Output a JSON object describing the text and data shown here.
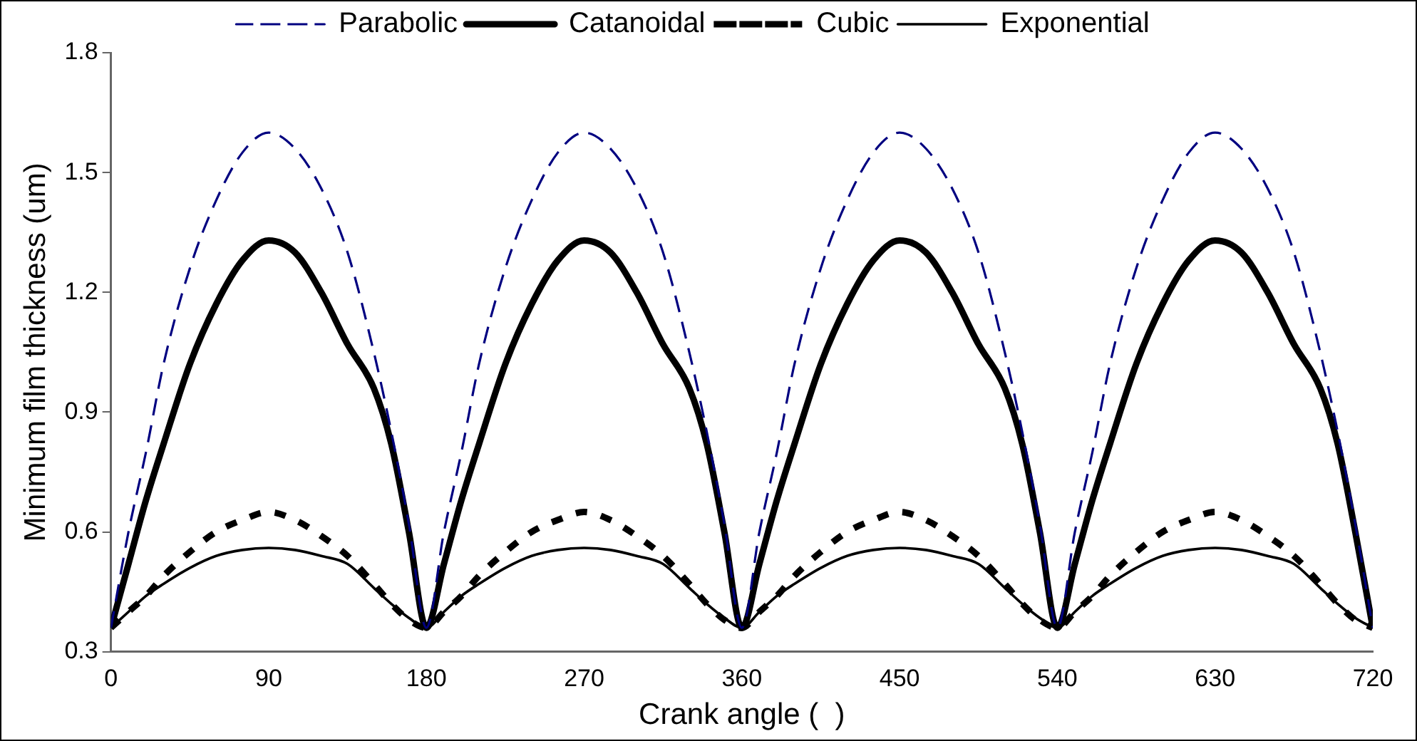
{
  "chart_data": {
    "type": "line",
    "xlabel": "Crank angle (  )",
    "ylabel": "Minimum film thickness (um)",
    "x": [
      0,
      10,
      20,
      30,
      45,
      60,
      75,
      90,
      105,
      120,
      135,
      150,
      160,
      170,
      180,
      190,
      200,
      210,
      225,
      240,
      255,
      270,
      285,
      300,
      315,
      330,
      340,
      350,
      360,
      370,
      380,
      390,
      405,
      420,
      435,
      450,
      465,
      480,
      495,
      510,
      520,
      530,
      540,
      550,
      560,
      570,
      585,
      600,
      615,
      630,
      645,
      660,
      675,
      690,
      700,
      710,
      720
    ],
    "xlim": [
      0,
      720
    ],
    "xticks": [
      0,
      90,
      180,
      270,
      360,
      450,
      540,
      630,
      720
    ],
    "ylim": [
      0.3,
      1.8
    ],
    "yticks": [
      0.3,
      0.6,
      0.9,
      1.2,
      1.5,
      1.8
    ],
    "grid": false,
    "legend": "top",
    "marker": "none",
    "series": [
      {
        "name": "Parabolic",
        "color": "#000080",
        "line_style": "dashed",
        "values": [
          0.36,
          0.6,
          0.8,
          1.02,
          1.26,
          1.43,
          1.55,
          1.6,
          1.56,
          1.46,
          1.3,
          1.05,
          0.85,
          0.62,
          0.36,
          0.6,
          0.8,
          1.02,
          1.26,
          1.43,
          1.55,
          1.6,
          1.56,
          1.46,
          1.3,
          1.05,
          0.85,
          0.62,
          0.36,
          0.6,
          0.8,
          1.02,
          1.26,
          1.43,
          1.55,
          1.6,
          1.56,
          1.46,
          1.3,
          1.05,
          0.85,
          0.62,
          0.36,
          0.6,
          0.8,
          1.02,
          1.26,
          1.43,
          1.55,
          1.6,
          1.56,
          1.46,
          1.3,
          1.05,
          0.85,
          0.62,
          0.36
        ]
      },
      {
        "name": "Catanoidal",
        "color": "#000000",
        "line_style": "solid",
        "values": [
          0.36,
          0.52,
          0.68,
          0.82,
          1.02,
          1.17,
          1.28,
          1.33,
          1.3,
          1.2,
          1.07,
          0.96,
          0.82,
          0.6,
          0.36,
          0.52,
          0.68,
          0.82,
          1.02,
          1.17,
          1.28,
          1.33,
          1.3,
          1.2,
          1.07,
          0.96,
          0.82,
          0.6,
          0.36,
          0.52,
          0.68,
          0.82,
          1.02,
          1.17,
          1.28,
          1.33,
          1.3,
          1.2,
          1.07,
          0.96,
          0.82,
          0.6,
          0.36,
          0.52,
          0.68,
          0.82,
          1.02,
          1.17,
          1.28,
          1.33,
          1.3,
          1.2,
          1.07,
          0.96,
          0.82,
          0.6,
          0.36
        ]
      },
      {
        "name": "Cubic",
        "color": "#000000",
        "line_style": "dotted",
        "values": [
          0.36,
          0.4,
          0.44,
          0.49,
          0.55,
          0.6,
          0.63,
          0.65,
          0.63,
          0.59,
          0.54,
          0.47,
          0.42,
          0.38,
          0.36,
          0.4,
          0.44,
          0.49,
          0.55,
          0.6,
          0.63,
          0.65,
          0.63,
          0.59,
          0.54,
          0.47,
          0.42,
          0.38,
          0.36,
          0.4,
          0.44,
          0.49,
          0.55,
          0.6,
          0.63,
          0.65,
          0.63,
          0.59,
          0.54,
          0.47,
          0.42,
          0.38,
          0.36,
          0.4,
          0.44,
          0.49,
          0.55,
          0.6,
          0.63,
          0.65,
          0.63,
          0.59,
          0.54,
          0.47,
          0.42,
          0.38,
          0.36
        ]
      },
      {
        "name": "Exponential",
        "color": "#000000",
        "line_style": "solid",
        "values": [
          0.36,
          0.4,
          0.44,
          0.47,
          0.51,
          0.54,
          0.555,
          0.56,
          0.555,
          0.54,
          0.52,
          0.46,
          0.42,
          0.385,
          0.36,
          0.4,
          0.44,
          0.47,
          0.51,
          0.54,
          0.555,
          0.56,
          0.555,
          0.54,
          0.52,
          0.46,
          0.42,
          0.385,
          0.36,
          0.4,
          0.44,
          0.47,
          0.51,
          0.54,
          0.555,
          0.56,
          0.555,
          0.54,
          0.52,
          0.46,
          0.42,
          0.385,
          0.36,
          0.4,
          0.44,
          0.47,
          0.51,
          0.54,
          0.555,
          0.56,
          0.555,
          0.54,
          0.52,
          0.46,
          0.42,
          0.385,
          0.36
        ]
      }
    ]
  }
}
